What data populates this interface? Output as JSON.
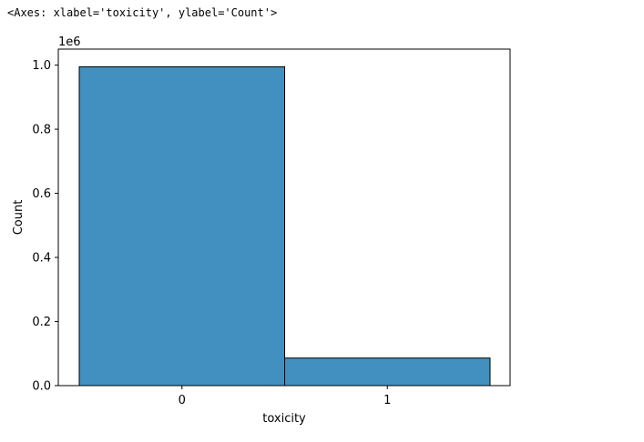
{
  "output_repr": "<Axes: xlabel='toxicity', ylabel='Count'>",
  "chart_data": {
    "type": "bar",
    "categories": [
      "0",
      "1"
    ],
    "values": [
      995000,
      86000
    ],
    "xlabel": "toxicity",
    "ylabel": "Count",
    "ylim": [
      0,
      1050000
    ],
    "yticks": [
      0,
      200000,
      400000,
      600000,
      800000,
      1000000
    ],
    "ytick_labels": [
      "0.0",
      "0.2",
      "0.4",
      "0.6",
      "0.8",
      "1.0"
    ],
    "offset_label": "1e6",
    "bar_color": "#4190bf",
    "grid": false
  }
}
